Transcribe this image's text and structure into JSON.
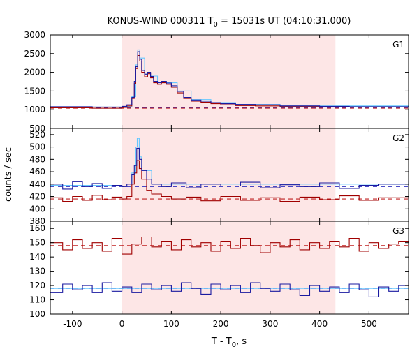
{
  "chart_data": {
    "type": "line",
    "title_main": "KONUS-WIND 000311 T",
    "title_sub": "0",
    "title_rest": " = 15031s UT (04:10:31.000)",
    "xlabel_main": "T - T",
    "xlabel_sub": "0",
    "xlabel_rest": ", s",
    "ylabel": "counts / sec",
    "xlim": [
      -145,
      580
    ],
    "xticks": [
      -100,
      0,
      100,
      200,
      300,
      400,
      500
    ],
    "xticklabels": [
      "-100",
      "0",
      "100",
      "200",
      "300",
      "400",
      "500"
    ],
    "shaded_interval": [
      0,
      432
    ],
    "colors": {
      "red": "#a00000",
      "blue": "#1a1aa0",
      "lightblue": "#66c8ff",
      "shade": "#fde6e6"
    },
    "panels": [
      {
        "name": "G1",
        "ylim": [
          500,
          3000
        ],
        "yticks": [
          500,
          1000,
          1500,
          2000,
          2500,
          3000
        ],
        "yticklabels": [
          "500",
          "1000",
          "1500",
          "2000",
          "2500",
          "3000"
        ],
        "background": {
          "red": 1040,
          "blue": 1060
        },
        "series": {
          "red": [
            [
              -145,
              1050
            ],
            [
              -60,
              1040
            ],
            [
              0,
              1060
            ],
            [
              10,
              1100
            ],
            [
              20,
              1300
            ],
            [
              25,
              1700
            ],
            [
              28,
              2100
            ],
            [
              32,
              2450
            ],
            [
              36,
              2300
            ],
            [
              40,
              2000
            ],
            [
              46,
              1880
            ],
            [
              52,
              1960
            ],
            [
              58,
              1850
            ],
            [
              64,
              1720
            ],
            [
              72,
              1680
            ],
            [
              80,
              1720
            ],
            [
              90,
              1680
            ],
            [
              100,
              1600
            ],
            [
              112,
              1450
            ],
            [
              125,
              1300
            ],
            [
              140,
              1230
            ],
            [
              160,
              1200
            ],
            [
              180,
              1160
            ],
            [
              200,
              1130
            ],
            [
              230,
              1110
            ],
            [
              270,
              1100
            ],
            [
              320,
              1080
            ],
            [
              400,
              1080
            ],
            [
              460,
              1070
            ],
            [
              580,
              1080
            ]
          ],
          "blue": [
            [
              -145,
              1080
            ],
            [
              -60,
              1070
            ],
            [
              0,
              1090
            ],
            [
              10,
              1130
            ],
            [
              20,
              1330
            ],
            [
              25,
              1760
            ],
            [
              28,
              2150
            ],
            [
              32,
              2550
            ],
            [
              36,
              2350
            ],
            [
              40,
              2050
            ],
            [
              46,
              1950
            ],
            [
              52,
              2000
            ],
            [
              58,
              1890
            ],
            [
              64,
              1760
            ],
            [
              72,
              1720
            ],
            [
              80,
              1760
            ],
            [
              90,
              1710
            ],
            [
              100,
              1640
            ],
            [
              112,
              1490
            ],
            [
              125,
              1330
            ],
            [
              140,
              1260
            ],
            [
              160,
              1230
            ],
            [
              180,
              1190
            ],
            [
              200,
              1160
            ],
            [
              230,
              1140
            ],
            [
              270,
              1130
            ],
            [
              320,
              1100
            ],
            [
              400,
              1090
            ],
            [
              460,
              1080
            ],
            [
              580,
              1090
            ]
          ],
          "lightblue": [
            [
              -145,
              1070
            ],
            [
              0,
              1080
            ],
            [
              20,
              1350
            ],
            [
              28,
              2200
            ],
            [
              32,
              2600
            ],
            [
              36,
              2380
            ],
            [
              46,
              1980
            ],
            [
              58,
              1900
            ],
            [
              72,
              1740
            ],
            [
              90,
              1720
            ],
            [
              112,
              1500
            ],
            [
              140,
              1270
            ],
            [
              180,
              1190
            ],
            [
              230,
              1140
            ],
            [
              320,
              1100
            ],
            [
              580,
              1090
            ]
          ]
        }
      },
      {
        "name": "G2",
        "ylim": [
          380,
          530
        ],
        "yticks": [
          380,
          400,
          420,
          440,
          460,
          480,
          500,
          520
        ],
        "yticklabels": [
          "380",
          "400",
          "420",
          "440",
          "460",
          "480",
          "500",
          "520"
        ],
        "background": {
          "red": 416,
          "blue": 436
        },
        "series": {
          "red": [
            [
              -145,
              418
            ],
            [
              -120,
              412
            ],
            [
              -100,
              420
            ],
            [
              -80,
              414
            ],
            [
              -60,
              422
            ],
            [
              -40,
              415
            ],
            [
              -20,
              419
            ],
            [
              0,
              416
            ],
            [
              10,
              420
            ],
            [
              20,
              440
            ],
            [
              25,
              458
            ],
            [
              30,
              478
            ],
            [
              35,
              465
            ],
            [
              40,
              448
            ],
            [
              50,
              430
            ],
            [
              60,
              424
            ],
            [
              80,
              420
            ],
            [
              100,
              416
            ],
            [
              130,
              419
            ],
            [
              160,
              413
            ],
            [
              200,
              420
            ],
            [
              240,
              414
            ],
            [
              280,
              418
            ],
            [
              320,
              412
            ],
            [
              360,
              419
            ],
            [
              400,
              415
            ],
            [
              440,
              421
            ],
            [
              480,
              414
            ],
            [
              520,
              418
            ],
            [
              580,
              416
            ]
          ],
          "blue": [
            [
              -145,
              440
            ],
            [
              -120,
              432
            ],
            [
              -100,
              444
            ],
            [
              -80,
              436
            ],
            [
              -60,
              441
            ],
            [
              -40,
              433
            ],
            [
              -20,
              438
            ],
            [
              0,
              436
            ],
            [
              10,
              440
            ],
            [
              20,
              455
            ],
            [
              25,
              470
            ],
            [
              30,
              498
            ],
            [
              35,
              480
            ],
            [
              40,
              462
            ],
            [
              50,
              448
            ],
            [
              60,
              440
            ],
            [
              80,
              436
            ],
            [
              100,
              442
            ],
            [
              130,
              434
            ],
            [
              160,
              440
            ],
            [
              200,
              437
            ],
            [
              240,
              443
            ],
            [
              280,
              434
            ],
            [
              320,
              439
            ],
            [
              360,
              436
            ],
            [
              400,
              442
            ],
            [
              440,
              433
            ],
            [
              480,
              438
            ],
            [
              520,
              440
            ],
            [
              580,
              446
            ]
          ],
          "lightblue": [
            [
              -145,
              438
            ],
            [
              0,
              437
            ],
            [
              20,
              458
            ],
            [
              28,
              500
            ],
            [
              31,
              514
            ],
            [
              35,
              484
            ],
            [
              40,
              462
            ],
            [
              60,
              440
            ],
            [
              580,
              437
            ]
          ]
        }
      },
      {
        "name": "G3",
        "ylim": [
          100,
          165
        ],
        "yticks": [
          100,
          110,
          120,
          130,
          140,
          150,
          160
        ],
        "yticklabels": [
          "100",
          "110",
          "120",
          "130",
          "140",
          "150",
          "160"
        ],
        "background": {
          "red": 148,
          "blue": 118
        },
        "series": {
          "red": [
            [
              -145,
              150
            ],
            [
              -120,
              145
            ],
            [
              -100,
              152
            ],
            [
              -80,
              146
            ],
            [
              -60,
              150
            ],
            [
              -40,
              144
            ],
            [
              -20,
              153
            ],
            [
              0,
              142
            ],
            [
              20,
              149
            ],
            [
              40,
              154
            ],
            [
              60,
              147
            ],
            [
              80,
              151
            ],
            [
              100,
              145
            ],
            [
              120,
              152
            ],
            [
              140,
              147
            ],
            [
              160,
              150
            ],
            [
              180,
              144
            ],
            [
              200,
              151
            ],
            [
              220,
              146
            ],
            [
              240,
              153
            ],
            [
              260,
              148
            ],
            [
              280,
              143
            ],
            [
              300,
              150
            ],
            [
              320,
              147
            ],
            [
              340,
              152
            ],
            [
              360,
              145
            ],
            [
              380,
              150
            ],
            [
              400,
              146
            ],
            [
              420,
              151
            ],
            [
              440,
              147
            ],
            [
              460,
              153
            ],
            [
              480,
              144
            ],
            [
              500,
              150
            ],
            [
              520,
              146
            ],
            [
              540,
              149
            ],
            [
              560,
              151
            ],
            [
              580,
              147
            ]
          ],
          "blue": [
            [
              -145,
              115
            ],
            [
              -120,
              121
            ],
            [
              -100,
              117
            ],
            [
              -80,
              120
            ],
            [
              -60,
              115
            ],
            [
              -40,
              122
            ],
            [
              -20,
              116
            ],
            [
              0,
              119
            ],
            [
              20,
              115
            ],
            [
              40,
              121
            ],
            [
              60,
              117
            ],
            [
              80,
              120
            ],
            [
              100,
              116
            ],
            [
              120,
              122
            ],
            [
              140,
              118
            ],
            [
              160,
              114
            ],
            [
              180,
              121
            ],
            [
              200,
              117
            ],
            [
              220,
              120
            ],
            [
              240,
              115
            ],
            [
              260,
              122
            ],
            [
              280,
              118
            ],
            [
              300,
              116
            ],
            [
              320,
              121
            ],
            [
              340,
              117
            ],
            [
              360,
              113
            ],
            [
              380,
              120
            ],
            [
              400,
              116
            ],
            [
              420,
              119
            ],
            [
              440,
              115
            ],
            [
              460,
              121
            ],
            [
              480,
              117
            ],
            [
              500,
              112
            ],
            [
              520,
              119
            ],
            [
              540,
              116
            ],
            [
              560,
              120
            ],
            [
              580,
              124
            ]
          ],
          "lightblue": [
            [
              -145,
              118
            ],
            [
              580,
              118
            ]
          ]
        }
      }
    ]
  }
}
